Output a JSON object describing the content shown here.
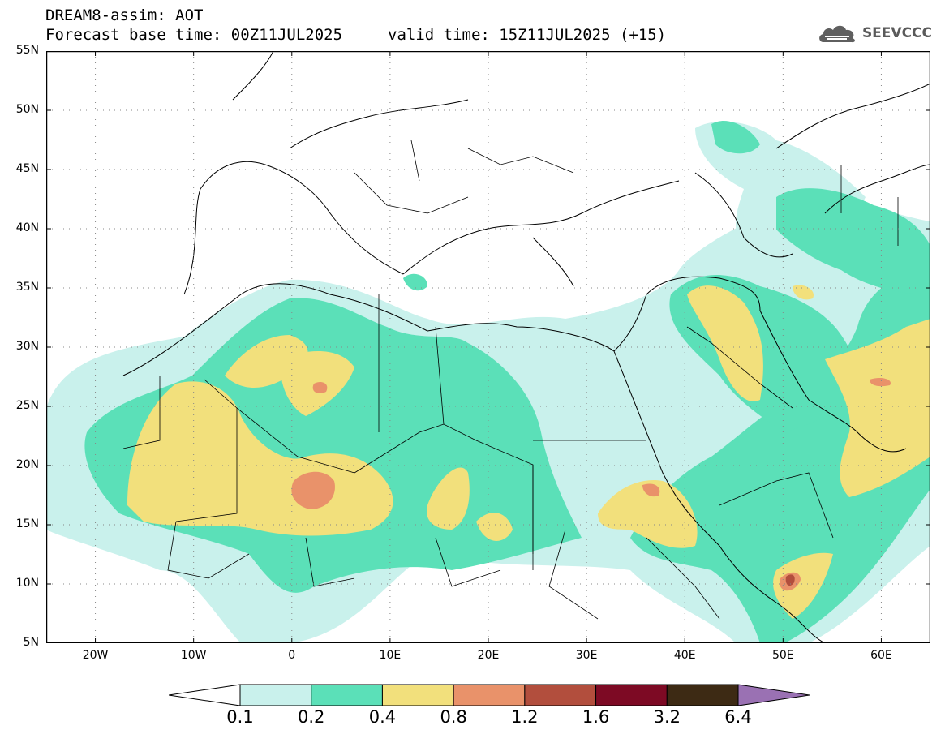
{
  "title": {
    "line1": "DREAM8-assim: AOT",
    "base_time": "Forecast base time: 00Z11JUL2025",
    "valid_time": "valid time: 15Z11JUL2025 (+15)"
  },
  "logo": {
    "text": "SEEVCCC",
    "icon": "cloud-icon"
  },
  "map": {
    "lon_range": [
      -25,
      65
    ],
    "lat_range": [
      5,
      55
    ],
    "lat_ticks": [
      {
        "value": 55,
        "label": "55N"
      },
      {
        "value": 50,
        "label": "50N"
      },
      {
        "value": 45,
        "label": "45N"
      },
      {
        "value": 40,
        "label": "40N"
      },
      {
        "value": 35,
        "label": "35N"
      },
      {
        "value": 30,
        "label": "30N"
      },
      {
        "value": 25,
        "label": "25N"
      },
      {
        "value": 20,
        "label": "20N"
      },
      {
        "value": 15,
        "label": "15N"
      },
      {
        "value": 10,
        "label": "10N"
      },
      {
        "value": 5,
        "label": "5N"
      }
    ],
    "lon_ticks": [
      {
        "value": -20,
        "label": "20W"
      },
      {
        "value": -10,
        "label": "10W"
      },
      {
        "value": 0,
        "label": "0"
      },
      {
        "value": 10,
        "label": "10E"
      },
      {
        "value": 20,
        "label": "20E"
      },
      {
        "value": 30,
        "label": "30E"
      },
      {
        "value": 40,
        "label": "40E"
      },
      {
        "value": 50,
        "label": "50E"
      },
      {
        "value": 60,
        "label": "60E"
      }
    ],
    "grid": "dotted",
    "colors": {
      "c01": "#c9f1ec",
      "c02": "#5be0b8",
      "c04": "#f2e07c",
      "c08": "#e9926a",
      "c12": "#b24e3d",
      "c16": "#7d0a24",
      "c32": "#3d2a14",
      "c64": "#9a71b3"
    }
  },
  "colorbar": {
    "levels": [
      "0.1",
      "0.2",
      "0.4",
      "0.8",
      "1.2",
      "1.6",
      "3.2",
      "6.4"
    ],
    "colors": [
      "#c9f1ec",
      "#5be0b8",
      "#f2e07c",
      "#e9926a",
      "#b24e3d",
      "#7d0a24",
      "#3d2a14"
    ],
    "under_color": "#ffffff",
    "over_color": "#9a71b3"
  }
}
